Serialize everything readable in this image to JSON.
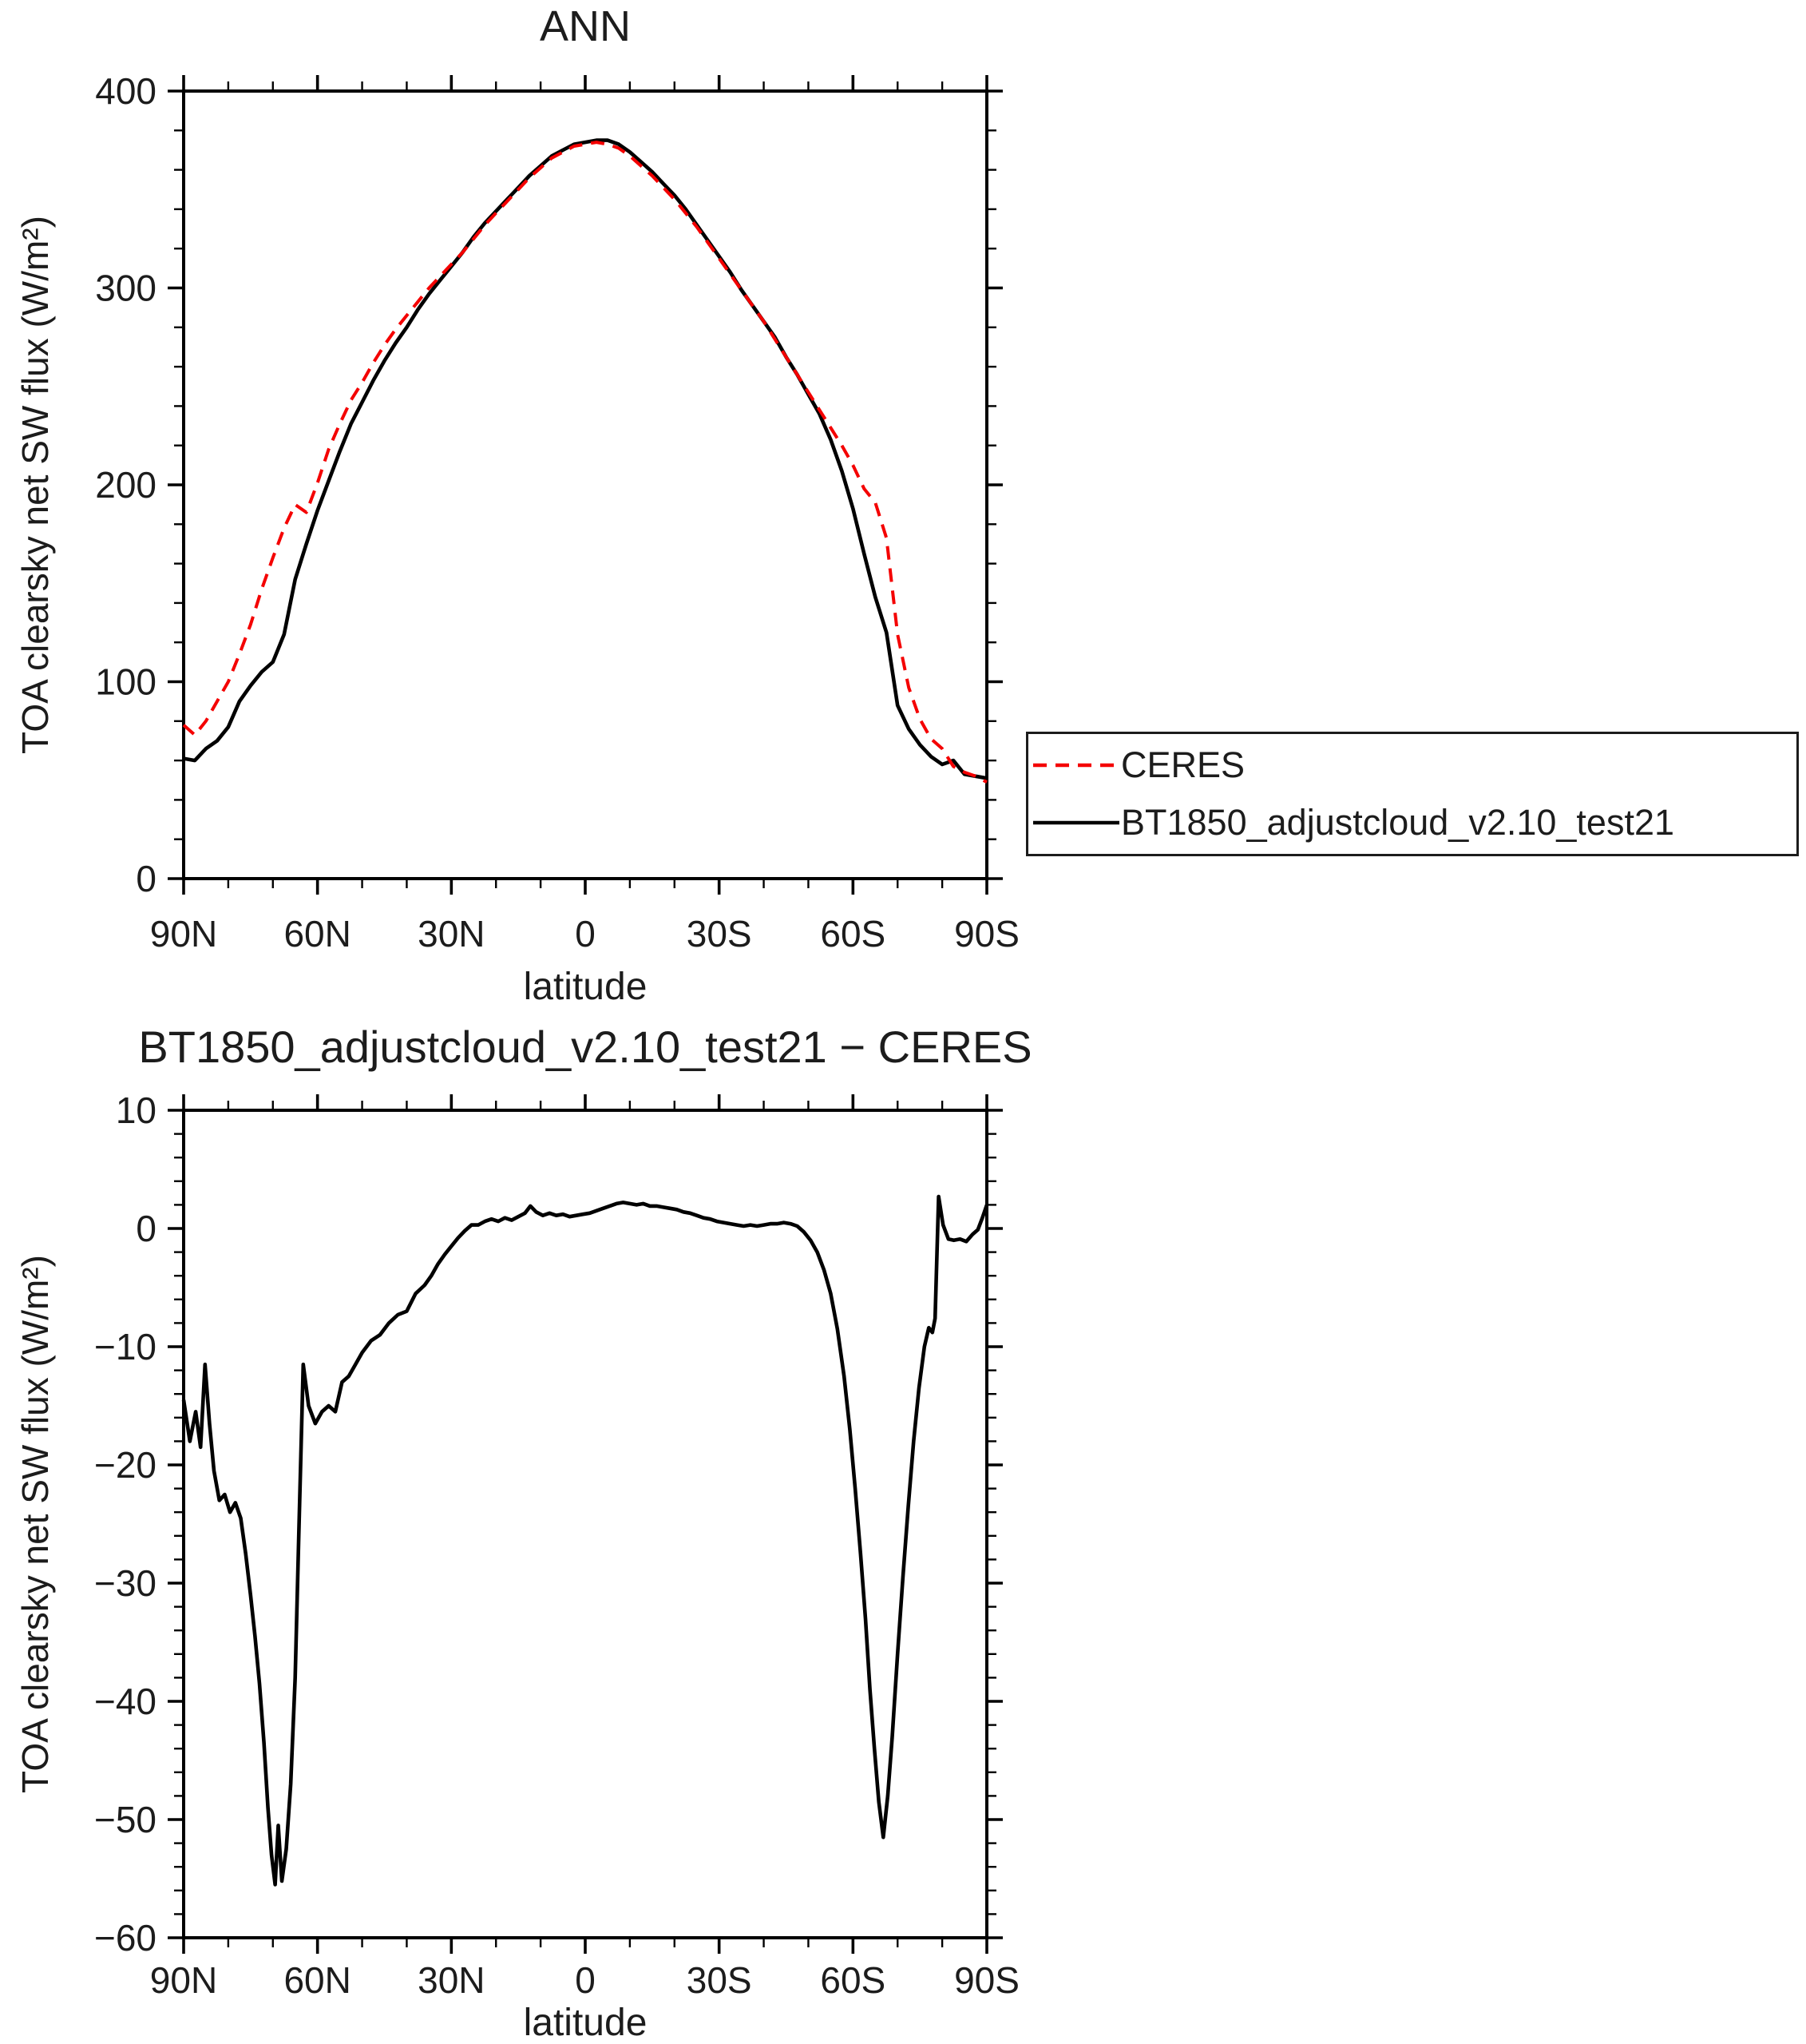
{
  "page": {
    "background": "#ffffff",
    "text_color": "#1c1c1c",
    "axis_color": "#000000"
  },
  "chart_data": [
    {
      "id": "top",
      "type": "line",
      "title": "ANN",
      "xlabel": "latitude",
      "ylabel": "TOA clearsky net SW flux (W/m²)",
      "xlim": [
        90,
        -90
      ],
      "ylim": [
        0,
        400
      ],
      "xticks": [
        90,
        60,
        30,
        0,
        -30,
        -60,
        -90
      ],
      "xtick_labels": [
        "90N",
        "60N",
        "30N",
        "0",
        "30S",
        "60S",
        "90S"
      ],
      "x_minor_step": 10,
      "yticks": [
        0,
        100,
        200,
        300,
        400
      ],
      "ytick_labels": [
        "0",
        "100",
        "200",
        "300",
        "400"
      ],
      "y_minor_step": 20,
      "axis_color": "#000000",
      "grid": false,
      "legend_position": "right-outside",
      "latitudes": [
        90,
        87.5,
        85,
        82.5,
        80,
        77.5,
        75,
        72.5,
        70,
        67.5,
        65,
        62.5,
        60,
        57.5,
        55,
        52.5,
        50,
        47.5,
        45,
        42.5,
        40,
        37.5,
        35,
        32.5,
        30,
        27.5,
        25,
        22.5,
        20,
        17.5,
        15,
        12.5,
        10,
        7.5,
        5,
        2.5,
        0,
        -2.5,
        -5,
        -7.5,
        -10,
        -12.5,
        -15,
        -17.5,
        -20,
        -22.5,
        -25,
        -27.5,
        -30,
        -32.5,
        -35,
        -37.5,
        -40,
        -42.5,
        -45,
        -47.5,
        -50,
        -52.5,
        -55,
        -57.5,
        -60,
        -62.5,
        -65,
        -67.5,
        -70,
        -72.5,
        -75,
        -77.5,
        -80,
        -82.5,
        -85,
        -87.5,
        -90
      ],
      "series": [
        {
          "name": "CERES",
          "color": "#f40000",
          "style": "dashed",
          "values": [
            78,
            73,
            80,
            90,
            100,
            114,
            129,
            147,
            163,
            178,
            190,
            186,
            201,
            218,
            231,
            243,
            252,
            262,
            271,
            279,
            286,
            293,
            300,
            306,
            312,
            318,
            325,
            332,
            338,
            344,
            350,
            356,
            361,
            366,
            369,
            372,
            373,
            374,
            373,
            371,
            367,
            362,
            357,
            351,
            345,
            338,
            331,
            323,
            315,
            307,
            299,
            291,
            283,
            274,
            265,
            256,
            247,
            238,
            229,
            220,
            210,
            198,
            191,
            173,
            124,
            97,
            81,
            71,
            66,
            57,
            54,
            52,
            49
          ]
        },
        {
          "name": "BT1850_adjustcloud_v2.10_test21",
          "color": "#000000",
          "style": "solid",
          "values": [
            61,
            60,
            66,
            70,
            77,
            90,
            98,
            105,
            110,
            124,
            152,
            170,
            187,
            202,
            217,
            231,
            242,
            253,
            263,
            272,
            280,
            289,
            297,
            304,
            311,
            318,
            326,
            333,
            339,
            345,
            351,
            357,
            362,
            367,
            370,
            373,
            374,
            375,
            375,
            373,
            369,
            364,
            359,
            353,
            347,
            340,
            332,
            324,
            316,
            308,
            299,
            291,
            283,
            275,
            265,
            256,
            246,
            236,
            223,
            207,
            188,
            165,
            143,
            125,
            88,
            76,
            68,
            62,
            58,
            60,
            53,
            52,
            51
          ]
        }
      ]
    },
    {
      "id": "diff",
      "type": "line",
      "title": "BT1850_adjustcloud_v2.10_test21 − CERES",
      "xlabel": "latitude",
      "ylabel": "TOA clearsky net SW flux (W/m²)",
      "xlim": [
        90,
        -90
      ],
      "ylim": [
        -60,
        10
      ],
      "xticks": [
        90,
        60,
        30,
        0,
        -30,
        -60,
        -90
      ],
      "xtick_labels": [
        "90N",
        "60N",
        "30N",
        "0",
        "30S",
        "60S",
        "90S"
      ],
      "x_minor_step": 10,
      "yticks": [
        10,
        0,
        -10,
        -20,
        -30,
        -40,
        -50,
        -60
      ],
      "ytick_labels": [
        "10",
        "0",
        "−10",
        "−20",
        "−30",
        "−40",
        "−50",
        "−60"
      ],
      "y_minor_step": 2,
      "axis_color": "#000000",
      "grid": false,
      "latitudes": [
        90,
        88.6,
        87.3,
        86.2,
        85.2,
        84.2,
        83.2,
        82,
        80.8,
        79.6,
        78.4,
        77.2,
        76.1,
        75,
        74,
        73,
        72,
        71.1,
        70.3,
        69.5,
        68.8,
        68,
        67,
        66,
        65,
        64.2,
        63.2,
        62,
        60.5,
        59,
        57.5,
        56,
        54.5,
        53,
        51.5,
        50,
        48,
        46,
        44,
        42,
        40,
        38,
        36,
        34.5,
        33,
        31.5,
        30,
        28.5,
        27,
        25.5,
        24,
        22.5,
        21,
        19.5,
        18,
        16.5,
        15,
        13.5,
        12.3,
        11,
        9.5,
        8,
        6.5,
        5,
        3.5,
        2,
        0.5,
        -1,
        -2.5,
        -4,
        -5.5,
        -7,
        -8.5,
        -10,
        -11.5,
        -13,
        -14.5,
        -16,
        -17.5,
        -19,
        -20.5,
        -22,
        -23.5,
        -25,
        -26.5,
        -28,
        -29.5,
        -31,
        -32.5,
        -34,
        -35.5,
        -37,
        -38.5,
        -40,
        -41.5,
        -43,
        -44.5,
        -46,
        -47.5,
        -49,
        -50.5,
        -52,
        -53.5,
        -55,
        -56.5,
        -58,
        -59.3,
        -60.5,
        -61.7,
        -62.8,
        -63.8,
        -64.8,
        -65.8,
        -66.8,
        -67.8,
        -68.8,
        -70,
        -71.2,
        -72.4,
        -73.6,
        -74.8,
        -76,
        -77,
        -77.8,
        -78.4,
        -79.2,
        -80.2,
        -81.4,
        -82.6,
        -84,
        -85.4,
        -86.8,
        -88,
        -89,
        -90
      ],
      "series": [
        {
          "name": "BT1850_adjustcloud_v2.10_test21 − CERES",
          "color": "#000000",
          "style": "solid",
          "values": [
            -14.5,
            -18,
            -15.5,
            -18.5,
            -11.5,
            -16.5,
            -20.5,
            -23,
            -22.5,
            -24,
            -23.2,
            -24.5,
            -27.5,
            -31,
            -34.5,
            -38.5,
            -43.5,
            -49,
            -53,
            -55.5,
            -50.5,
            -55.2,
            -52.5,
            -47,
            -38,
            -26,
            -11.5,
            -15,
            -16.5,
            -15.5,
            -15,
            -15.5,
            -13,
            -12.5,
            -11.5,
            -10.5,
            -9.5,
            -9,
            -8,
            -7.3,
            -7,
            -5.5,
            -4.8,
            -4,
            -3,
            -2.2,
            -1.5,
            -0.8,
            -0.2,
            0.3,
            0.3,
            0.6,
            0.8,
            0.6,
            0.9,
            0.7,
            1,
            1.3,
            1.9,
            1.4,
            1.1,
            1.3,
            1.1,
            1.2,
            1,
            1.1,
            1.2,
            1.3,
            1.5,
            1.7,
            1.9,
            2.1,
            2.2,
            2.1,
            2,
            2.1,
            1.9,
            1.9,
            1.8,
            1.7,
            1.6,
            1.4,
            1.3,
            1.1,
            0.9,
            0.8,
            0.6,
            0.5,
            0.4,
            0.3,
            0.2,
            0.3,
            0.2,
            0.3,
            0.4,
            0.4,
            0.5,
            0.4,
            0.2,
            -0.3,
            -1,
            -2,
            -3.5,
            -5.5,
            -8.5,
            -12.5,
            -17,
            -22,
            -27.5,
            -33,
            -39,
            -44,
            -48.5,
            -51.5,
            -48,
            -43,
            -36,
            -29.5,
            -23.5,
            -18,
            -13.5,
            -10,
            -8.4,
            -8.8,
            -7.6,
            2.7,
            0.3,
            -0.9,
            -1,
            -0.9,
            -1.1,
            -0.5,
            -0.1,
            0.9,
            2
          ]
        }
      ]
    }
  ],
  "legend": {
    "entries": [
      "CERES",
      "BT1850_adjustcloud_v2.10_test21"
    ]
  }
}
